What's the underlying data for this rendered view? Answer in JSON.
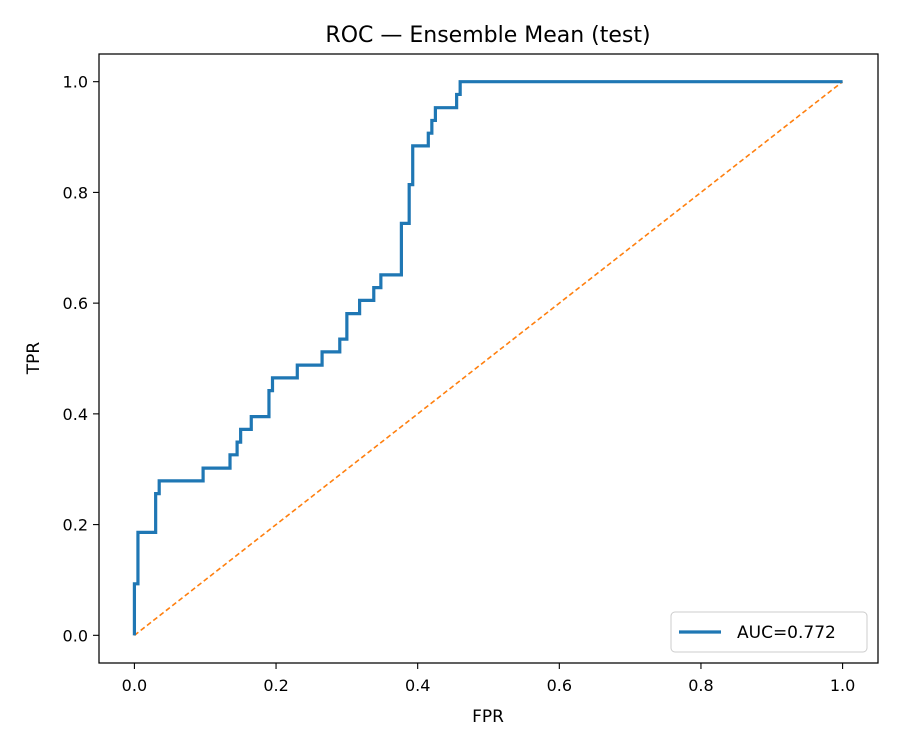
{
  "chart_data": {
    "type": "line",
    "title": "ROC — Ensemble Mean (test)",
    "xlabel": "FPR",
    "ylabel": "TPR",
    "xlim": [
      -0.05,
      1.05
    ],
    "ylim": [
      -0.05,
      1.05
    ],
    "xticks": [
      "0.0",
      "0.2",
      "0.4",
      "0.6",
      "0.8",
      "1.0"
    ],
    "yticks": [
      "0.0",
      "0.2",
      "0.4",
      "0.6",
      "0.8",
      "1.0"
    ],
    "grid": false,
    "legend_position": "lower-right",
    "series": [
      {
        "name": "AUC=0.772",
        "color": "#1f77b4",
        "style": "solid",
        "x": [
          0.0,
          0.0,
          0.005,
          0.005,
          0.03,
          0.03,
          0.035,
          0.035,
          0.097,
          0.097,
          0.135,
          0.135,
          0.145,
          0.145,
          0.15,
          0.15,
          0.165,
          0.165,
          0.19,
          0.19,
          0.195,
          0.195,
          0.23,
          0.23,
          0.265,
          0.265,
          0.29,
          0.29,
          0.3,
          0.3,
          0.318,
          0.318,
          0.338,
          0.338,
          0.348,
          0.348,
          0.377,
          0.377,
          0.388,
          0.388,
          0.393,
          0.393,
          0.415,
          0.415,
          0.42,
          0.42,
          0.425,
          0.425,
          0.455,
          0.455,
          0.46,
          0.46,
          1.0
        ],
        "y": [
          0.0,
          0.093,
          0.093,
          0.186,
          0.186,
          0.256,
          0.256,
          0.279,
          0.279,
          0.302,
          0.302,
          0.326,
          0.326,
          0.349,
          0.349,
          0.372,
          0.372,
          0.395,
          0.395,
          0.442,
          0.442,
          0.465,
          0.465,
          0.488,
          0.488,
          0.512,
          0.512,
          0.535,
          0.535,
          0.581,
          0.581,
          0.605,
          0.605,
          0.628,
          0.628,
          0.651,
          0.651,
          0.744,
          0.744,
          0.814,
          0.814,
          0.884,
          0.884,
          0.907,
          0.907,
          0.93,
          0.93,
          0.953,
          0.953,
          0.977,
          0.977,
          1.0,
          1.0
        ]
      },
      {
        "name": "",
        "color": "#ff7f0e",
        "style": "dashed",
        "x": [
          0,
          1
        ],
        "y": [
          0,
          1
        ]
      }
    ]
  }
}
